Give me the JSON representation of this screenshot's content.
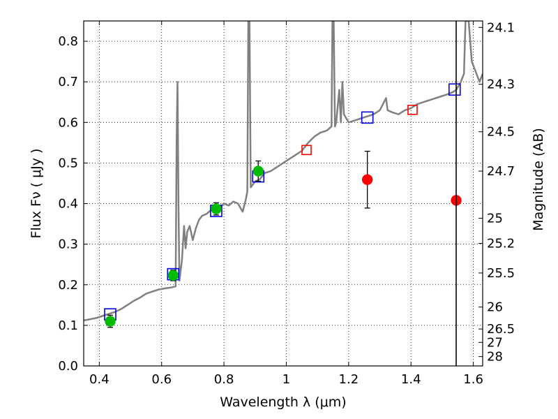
{
  "chart_data": {
    "type": "scatter",
    "xlabel": "Wavelength  λ (μm)",
    "ylabel": "Flux  Fν  ( μJy )",
    "y2label": "Magnitude (AB)",
    "xlim": [
      0.35,
      1.63
    ],
    "ylim": [
      0.0,
      0.85
    ],
    "xticks": [
      0.4,
      0.6,
      0.8,
      1.0,
      1.2,
      1.4,
      1.6
    ],
    "xtick_labels": [
      "0.4",
      "0.6",
      "0.8",
      "1",
      "1.2",
      "1.4",
      "1.6"
    ],
    "yticks": [
      0.0,
      0.1,
      0.2,
      0.3,
      0.4,
      0.5,
      0.6,
      0.7,
      0.8
    ],
    "ytick_labels": [
      "0.0",
      "0.1",
      "0.2",
      "0.3",
      "0.4",
      "0.5",
      "0.6",
      "0.7",
      "0.8"
    ],
    "y2ticks": [
      {
        "label": "24.1",
        "flux": 0.834
      },
      {
        "label": "24.3",
        "flux": 0.694
      },
      {
        "label": "24.5",
        "flux": 0.577
      },
      {
        "label": "24.7",
        "flux": 0.48
      },
      {
        "label": "25",
        "flux": 0.364
      },
      {
        "label": "25.2",
        "flux": 0.302
      },
      {
        "label": "25.5",
        "flux": 0.229
      },
      {
        "label": "26",
        "flux": 0.145
      },
      {
        "label": "26.5",
        "flux": 0.091
      },
      {
        "label": "27",
        "flux": 0.058
      },
      {
        "label": "28",
        "flux": 0.023
      }
    ],
    "grid": true,
    "vertical_line_x": 1.545,
    "series": [
      {
        "kind": "model-spectrum",
        "color": "#808080",
        "points": [
          [
            0.35,
            0.112
          ],
          [
            0.37,
            0.115
          ],
          [
            0.39,
            0.118
          ],
          [
            0.41,
            0.123
          ],
          [
            0.43,
            0.128
          ],
          [
            0.45,
            0.133
          ],
          [
            0.47,
            0.14
          ],
          [
            0.49,
            0.15
          ],
          [
            0.51,
            0.16
          ],
          [
            0.53,
            0.168
          ],
          [
            0.55,
            0.178
          ],
          [
            0.57,
            0.183
          ],
          [
            0.59,
            0.188
          ],
          [
            0.61,
            0.191
          ],
          [
            0.63,
            0.193
          ],
          [
            0.645,
            0.196
          ],
          [
            0.648,
            0.55
          ],
          [
            0.651,
            0.7
          ],
          [
            0.654,
            0.4
          ],
          [
            0.657,
            0.21
          ],
          [
            0.665,
            0.26
          ],
          [
            0.672,
            0.345
          ],
          [
            0.677,
            0.29
          ],
          [
            0.682,
            0.33
          ],
          [
            0.69,
            0.345
          ],
          [
            0.7,
            0.31
          ],
          [
            0.71,
            0.34
          ],
          [
            0.72,
            0.36
          ],
          [
            0.73,
            0.37
          ],
          [
            0.745,
            0.375
          ],
          [
            0.76,
            0.385
          ],
          [
            0.77,
            0.382
          ],
          [
            0.785,
            0.39
          ],
          [
            0.8,
            0.4
          ],
          [
            0.815,
            0.395
          ],
          [
            0.83,
            0.405
          ],
          [
            0.845,
            0.4
          ],
          [
            0.86,
            0.38
          ],
          [
            0.87,
            0.41
          ],
          [
            0.875,
            0.43
          ],
          [
            0.878,
            0.85
          ],
          [
            0.882,
            0.85
          ],
          [
            0.886,
            0.44
          ],
          [
            0.9,
            0.455
          ],
          [
            0.915,
            0.46
          ],
          [
            0.93,
            0.475
          ],
          [
            0.95,
            0.48
          ],
          [
            0.97,
            0.49
          ],
          [
            0.99,
            0.5
          ],
          [
            1.01,
            0.51
          ],
          [
            1.03,
            0.52
          ],
          [
            1.05,
            0.53
          ],
          [
            1.07,
            0.55
          ],
          [
            1.09,
            0.565
          ],
          [
            1.11,
            0.575
          ],
          [
            1.13,
            0.58
          ],
          [
            1.145,
            0.59
          ],
          [
            1.148,
            0.85
          ],
          [
            1.152,
            0.85
          ],
          [
            1.156,
            0.59
          ],
          [
            1.16,
            0.6
          ],
          [
            1.17,
            0.68
          ],
          [
            1.175,
            0.6
          ],
          [
            1.18,
            0.7
          ],
          [
            1.185,
            0.62
          ],
          [
            1.2,
            0.6
          ],
          [
            1.22,
            0.605
          ],
          [
            1.24,
            0.61
          ],
          [
            1.26,
            0.615
          ],
          [
            1.28,
            0.62
          ],
          [
            1.3,
            0.63
          ],
          [
            1.32,
            0.66
          ],
          [
            1.325,
            0.63
          ],
          [
            1.34,
            0.625
          ],
          [
            1.36,
            0.62
          ],
          [
            1.38,
            0.63
          ],
          [
            1.4,
            0.635
          ],
          [
            1.42,
            0.645
          ],
          [
            1.44,
            0.65
          ],
          [
            1.46,
            0.655
          ],
          [
            1.48,
            0.66
          ],
          [
            1.5,
            0.665
          ],
          [
            1.52,
            0.67
          ],
          [
            1.535,
            0.675
          ],
          [
            1.545,
            0.68
          ],
          [
            1.56,
            0.7
          ],
          [
            1.57,
            0.72
          ],
          [
            1.575,
            0.85
          ],
          [
            1.585,
            0.85
          ],
          [
            1.595,
            0.75
          ],
          [
            1.61,
            0.72
          ],
          [
            1.62,
            0.7
          ],
          [
            1.63,
            0.72
          ]
        ]
      },
      {
        "kind": "blue-open-squares",
        "color": "#0000ee",
        "points": [
          [
            0.435,
            0.127
          ],
          [
            0.637,
            0.226
          ],
          [
            0.775,
            0.382
          ],
          [
            0.91,
            0.467
          ],
          [
            1.26,
            0.612
          ],
          [
            1.54,
            0.681
          ]
        ]
      },
      {
        "kind": "red-open-squares",
        "color": "#ff0000",
        "points": [
          [
            1.065,
            0.532
          ],
          [
            1.405,
            0.631
          ]
        ]
      },
      {
        "kind": "green-points-with-errorbars",
        "color": "#00bb00",
        "points": [
          [
            0.435,
            0.11,
            0.015
          ],
          [
            0.637,
            0.223,
            0.013
          ],
          [
            0.775,
            0.387,
            0.015
          ],
          [
            0.91,
            0.48,
            0.025
          ]
        ]
      },
      {
        "kind": "red-points",
        "color": "#ff0000",
        "points": [
          [
            1.26,
            0.459,
            0.07
          ],
          [
            1.545,
            0.408,
            0
          ]
        ]
      }
    ]
  }
}
